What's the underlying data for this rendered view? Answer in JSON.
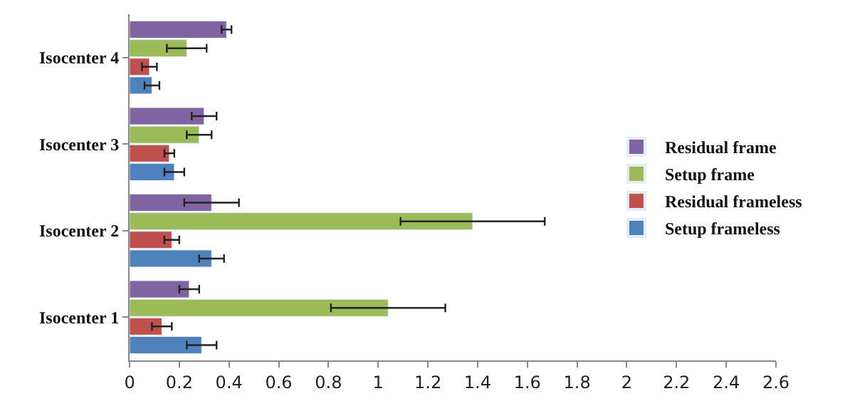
{
  "chart_data": {
    "type": "bar",
    "orientation": "horizontal",
    "categories": [
      "Isocenter 4",
      "Isocenter 3",
      "Isocenter 2",
      "Isocenter 1"
    ],
    "series": [
      {
        "name": "Residual frame",
        "color": "#8064a2",
        "values": [
          0.39,
          0.3,
          0.33,
          0.24
        ],
        "errors": [
          0.02,
          0.05,
          0.11,
          0.04
        ]
      },
      {
        "name": "Setup frame",
        "color": "#9bbb59",
        "values": [
          0.23,
          0.28,
          1.38,
          1.04
        ],
        "errors": [
          0.08,
          0.05,
          0.29,
          0.23
        ]
      },
      {
        "name": "Residual frameless",
        "color": "#c0504d",
        "values": [
          0.08,
          0.16,
          0.17,
          0.13
        ],
        "errors": [
          0.03,
          0.02,
          0.03,
          0.04
        ]
      },
      {
        "name": "Setup frameless",
        "color": "#4f81bd",
        "values": [
          0.09,
          0.18,
          0.33,
          0.29
        ],
        "errors": [
          0.03,
          0.04,
          0.05,
          0.06
        ]
      }
    ],
    "xlim": [
      0,
      2.6
    ],
    "xticks": [
      0,
      0.2,
      0.4,
      0.6,
      0.8,
      1,
      1.2,
      1.4,
      1.6,
      1.8,
      2,
      2.2,
      2.4,
      2.6
    ],
    "legend": "right"
  }
}
